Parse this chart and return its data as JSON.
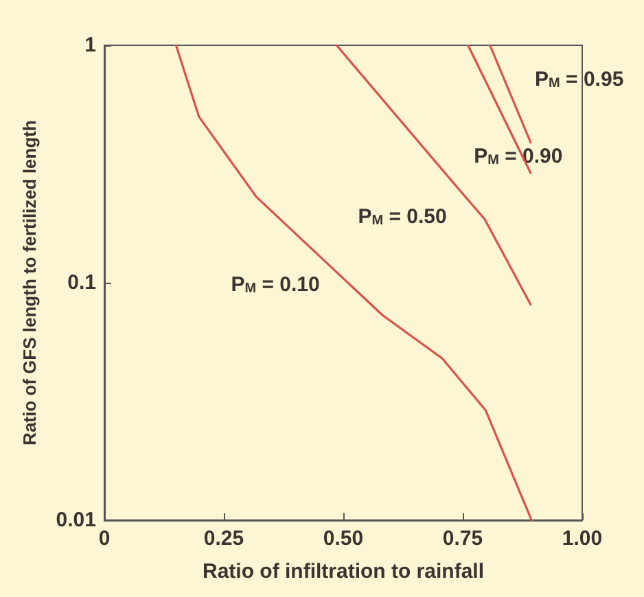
{
  "chart_data": {
    "type": "line",
    "xlabel": "Ratio of infiltration to rainfall",
    "ylabel": "Ratio of GFS length to fertilized length",
    "xlim": [
      0,
      1
    ],
    "xticks": [
      0,
      {
        "value": 0.25,
        "label": "0.25"
      },
      {
        "value": 0.5,
        "label": "0.50"
      },
      {
        "value": 0.75,
        "label": "0.75"
      },
      {
        "value": 1,
        "label": "1.00"
      }
    ],
    "ylim": [
      0.01,
      1
    ],
    "yticks": [
      0.01,
      0.1,
      1
    ],
    "log": "y",
    "grid": false,
    "marker": "none",
    "line_style": "solid",
    "series": [
      {
        "name": "P$_{M}$ = 0.10",
        "color": "#d9534a",
        "x": [
          0.15,
          0.198,
          0.318,
          0.582,
          0.707,
          0.798,
          0.894
        ],
        "values": [
          1,
          0.5,
          0.23,
          0.073,
          0.048,
          0.029,
          0.01
        ]
      },
      {
        "name": "P$_{M}$ = 0.50",
        "color": "#d9534a",
        "x": [
          0.486,
          0.74,
          0.796,
          0.892
        ],
        "values": [
          1,
          0.25,
          0.185,
          0.081
        ]
      },
      {
        "name": "P$_{M}$ = 0.90",
        "color": "#d9534a",
        "x": [
          0.761,
          0.892
        ],
        "values": [
          1,
          0.29
        ]
      },
      {
        "name": "P$_{M}$ = 0.95",
        "color": "#d9534a",
        "x": [
          0.807,
          0.892
        ],
        "values": [
          1,
          0.39
        ]
      }
    ]
  }
}
